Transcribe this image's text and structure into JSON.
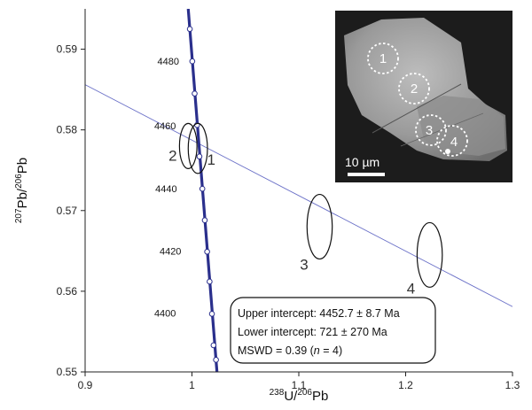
{
  "chart_data": {
    "type": "scatter",
    "title": "",
    "xlabel": {
      "sup1": "238",
      "b1": "U/",
      "sup2": "206",
      "b2": "Pb"
    },
    "ylabel": {
      "sup1": "207",
      "b1": "Pb/",
      "sup2": "206",
      "b2": "Pb"
    },
    "xlim": [
      0.9,
      1.3
    ],
    "ylim": [
      0.55,
      0.595
    ],
    "grid": false,
    "x_ticks": [
      "0.9",
      "1",
      "1.1",
      "1.2",
      "1.3"
    ],
    "y_ticks": [
      "0.55",
      "0.56",
      "0.57",
      "0.58",
      "0.59"
    ],
    "concordia": {
      "color": "#2a2f8c",
      "points": [
        {
          "x": 1.0225,
          "y": 0.5515
        },
        {
          "x": 1.0202,
          "y": 0.5533
        },
        {
          "x": 1.0187,
          "y": 0.5572
        },
        {
          "x": 1.0165,
          "y": 0.5612
        },
        {
          "x": 1.0142,
          "y": 0.5649
        },
        {
          "x": 1.012,
          "y": 0.5688
        },
        {
          "x": 1.0097,
          "y": 0.5727
        },
        {
          "x": 1.007,
          "y": 0.5767
        },
        {
          "x": 1.0048,
          "y": 0.5806
        },
        {
          "x": 1.0025,
          "y": 0.5845
        },
        {
          "x": 1.0003,
          "y": 0.5885
        },
        {
          "x": 0.998,
          "y": 0.5925
        }
      ],
      "age_labels": [
        {
          "text": "4400",
          "x": 0.985,
          "y": 0.5573
        },
        {
          "text": "4420",
          "x": 0.99,
          "y": 0.565
        },
        {
          "text": "4440",
          "x": 0.986,
          "y": 0.5727
        },
        {
          "text": "4460",
          "x": 0.985,
          "y": 0.5805
        },
        {
          "text": "4480",
          "x": 0.988,
          "y": 0.5885
        }
      ]
    },
    "discordia": {
      "color": "#6c72c8",
      "x0": 0.9,
      "y0": 0.5856,
      "x1": 1.3,
      "y1": 0.5581
    },
    "ellipses": [
      {
        "label": "1",
        "cx": 1.0055,
        "cy": 0.5777,
        "rx": 0.009,
        "ry": 0.0031,
        "label_x": 1.018,
        "label_y": 0.5757
      },
      {
        "label": "2",
        "cx": 0.9965,
        "cy": 0.578,
        "rx": 0.0082,
        "ry": 0.0028,
        "label_x": 0.982,
        "label_y": 0.5762
      },
      {
        "label": "3",
        "cx": 1.1195,
        "cy": 0.568,
        "rx": 0.0118,
        "ry": 0.004,
        "label_x": 1.105,
        "label_y": 0.5627
      },
      {
        "label": "4",
        "cx": 1.2225,
        "cy": 0.5645,
        "rx": 0.0118,
        "ry": 0.004,
        "label_x": 1.205,
        "label_y": 0.5597
      }
    ],
    "annotation": {
      "line1": "Upper intercept: 4452.7 ± 8.7 Ma",
      "line2": "Lower intercept: 721 ± 270 Ma",
      "line3_pre": "MSWD = 0.39 (",
      "line3_n": "n",
      "line3_post": " = 4)"
    },
    "inset": {
      "spot_labels": [
        "1",
        "2",
        "3",
        "4"
      ],
      "scale_bar": "10 µm"
    }
  }
}
